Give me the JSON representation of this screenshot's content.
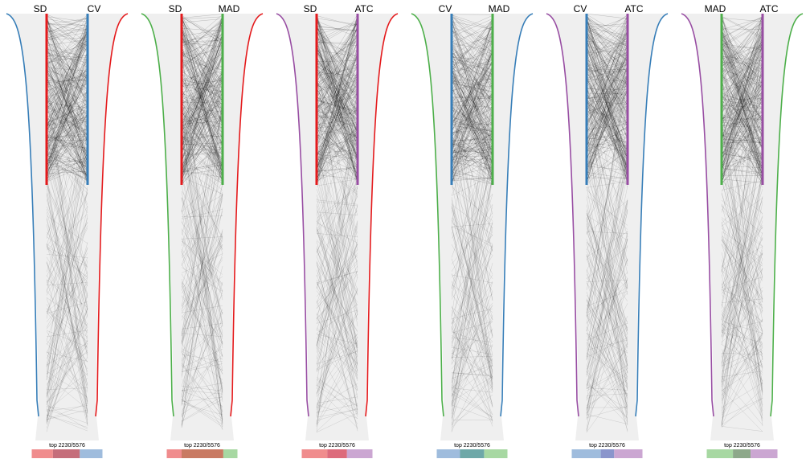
{
  "palette": {
    "SD": "#e41a1c",
    "CV": "#377eb8",
    "MAD": "#4daf4a",
    "ATC": "#984ea3",
    "background_band": "#efefef",
    "link": "#000000"
  },
  "chart_data": [
    {
      "type": "parallel_rank_comparison",
      "left_metric": "SD",
      "right_metric": "CV",
      "caption": "top 2230/5576",
      "top_n": 2230,
      "total": 5576,
      "bar_fractions": {
        "left_only": 0.3,
        "overlap": 0.38,
        "right_only": 0.32
      },
      "bar_colors": [
        "#f08c8d",
        "#c56e7b",
        "#9fbcdd"
      ]
    },
    {
      "type": "parallel_rank_comparison",
      "left_metric": "SD",
      "right_metric": "MAD",
      "caption": "top 2230/5576",
      "top_n": 2230,
      "total": 5576,
      "bar_fractions": {
        "left_only": 0.21,
        "overlap": 0.59,
        "right_only": 0.2
      },
      "bar_colors": [
        "#f08c8d",
        "#c97a63",
        "#a7d8a2"
      ]
    },
    {
      "type": "parallel_rank_comparison",
      "left_metric": "SD",
      "right_metric": "ATC",
      "caption": "top 2230/5576",
      "top_n": 2230,
      "total": 5576,
      "bar_fractions": {
        "left_only": 0.36,
        "overlap": 0.28,
        "right_only": 0.36
      },
      "bar_colors": [
        "#f08c8d",
        "#dd6b7c",
        "#cba6d2"
      ]
    },
    {
      "type": "parallel_rank_comparison",
      "left_metric": "CV",
      "right_metric": "MAD",
      "caption": "top 2230/5576",
      "top_n": 2230,
      "total": 5576,
      "bar_fractions": {
        "left_only": 0.33,
        "overlap": 0.34,
        "right_only": 0.33
      },
      "bar_colors": [
        "#9fbcdd",
        "#6ea8a8",
        "#a7d8a2"
      ]
    },
    {
      "type": "parallel_rank_comparison",
      "left_metric": "CV",
      "right_metric": "ATC",
      "caption": "top 2230/5576",
      "top_n": 2230,
      "total": 5576,
      "bar_fractions": {
        "left_only": 0.41,
        "overlap": 0.19,
        "right_only": 0.4
      },
      "bar_colors": [
        "#9fbcdd",
        "#8a95cc",
        "#cba6d2"
      ]
    },
    {
      "type": "parallel_rank_comparison",
      "left_metric": "MAD",
      "right_metric": "ATC",
      "caption": "top 2230/5576",
      "top_n": 2230,
      "total": 5576,
      "bar_fractions": {
        "left_only": 0.37,
        "overlap": 0.25,
        "right_only": 0.38
      },
      "bar_colors": [
        "#a7d8a2",
        "#8da88a",
        "#cba6d2"
      ]
    }
  ]
}
